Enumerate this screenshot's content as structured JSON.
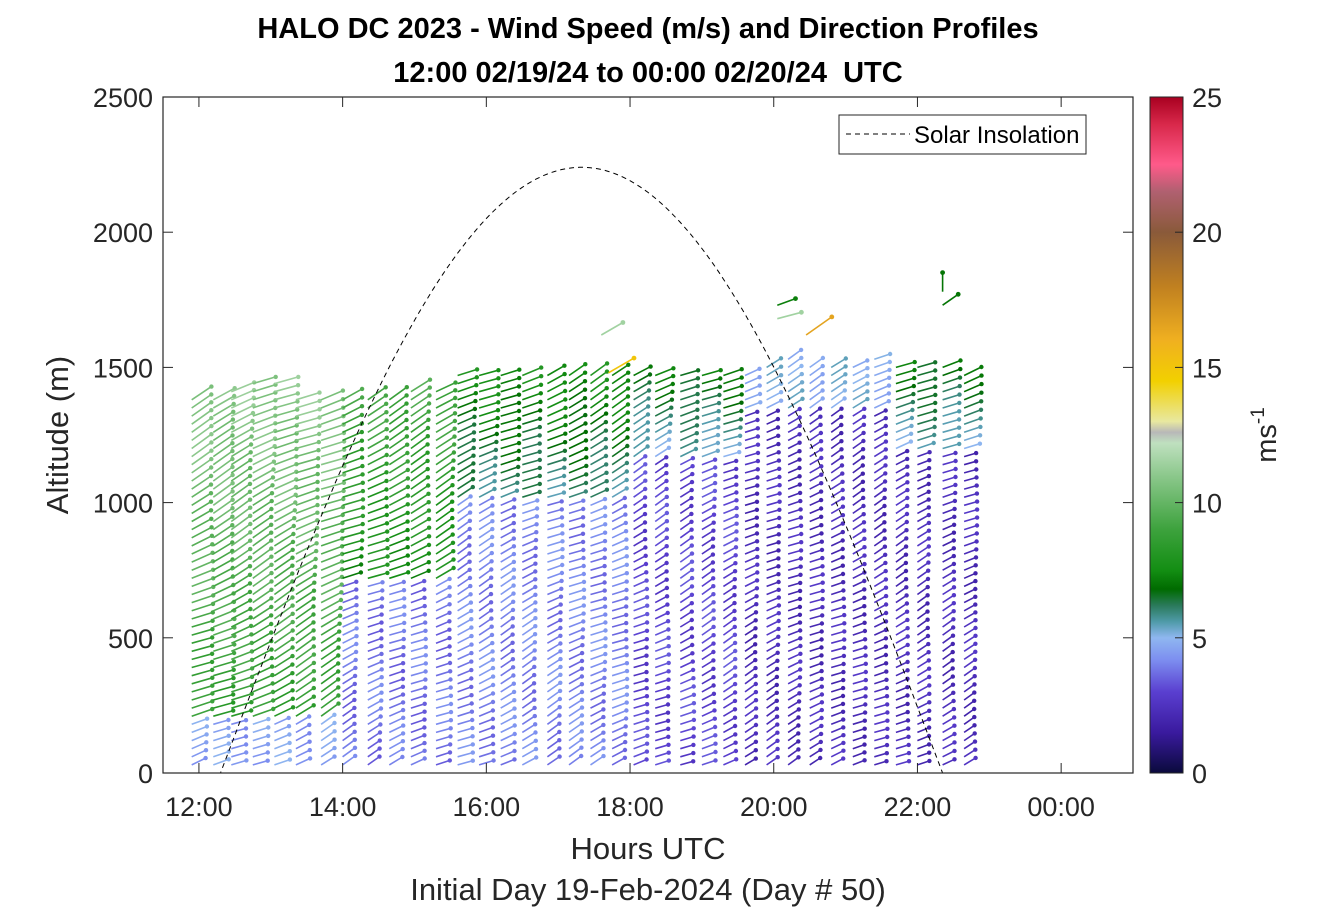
{
  "chart_data": {
    "type": "scatter",
    "title": "HALO DC 2023 - Wind Speed (m/s) and Direction Profiles",
    "subtitle": "12:00 02/19/24 to 00:00 02/20/24  UTC",
    "xlabel": "Hours UTC",
    "xlabel2": "Initial Day 19-Feb-2024 (Day # 50)",
    "ylabel": "Altitude (m)",
    "colorbar_label": "ms",
    "colorbar_label_exp": "-1",
    "xlim_hours": [
      11.5,
      25.0
    ],
    "ylim": [
      0,
      2500
    ],
    "x_ticks": [
      12,
      14,
      16,
      18,
      20,
      22,
      24
    ],
    "x_tick_labels": [
      "12:00",
      "14:00",
      "16:00",
      "18:00",
      "20:00",
      "22:00",
      "00:00"
    ],
    "y_ticks": [
      0,
      500,
      1000,
      1500,
      2000,
      2500
    ],
    "y_tick_labels": [
      "0",
      "500",
      "1000",
      "1500",
      "2000",
      "2500"
    ],
    "colorbar_range": [
      0,
      25
    ],
    "colorbar_ticks": [
      0,
      5,
      10,
      15,
      20,
      25
    ],
    "colorbar_tick_labels": [
      "0",
      "5",
      "10",
      "15",
      "20",
      "25"
    ],
    "legend": {
      "entries": [
        "Solar Insolation"
      ],
      "placement": "top-right"
    },
    "grid": false,
    "colormap": [
      [
        0,
        "#0a0a3c"
      ],
      [
        1.5,
        "#3a1a9e"
      ],
      [
        3,
        "#5a3fd0"
      ],
      [
        4.2,
        "#7d8ff0"
      ],
      [
        5,
        "#8fb7f0"
      ],
      [
        5.6,
        "#4f9aa8"
      ],
      [
        6.2,
        "#2a7a5a"
      ],
      [
        6.8,
        "#006b00"
      ],
      [
        7.5,
        "#138e13"
      ],
      [
        9,
        "#3da23d"
      ],
      [
        11,
        "#8cc88c"
      ],
      [
        12.2,
        "#bfe0bf"
      ],
      [
        12.6,
        "#b8b8b8"
      ],
      [
        13,
        "#e8e8a0"
      ],
      [
        14.5,
        "#f2d000"
      ],
      [
        16,
        "#f0b020"
      ],
      [
        18,
        "#c08020"
      ],
      [
        20,
        "#8a5a3a"
      ],
      [
        21.5,
        "#b06070"
      ],
      [
        22.5,
        "#ff5a8a"
      ],
      [
        24,
        "#d8284a"
      ],
      [
        25,
        "#a80020"
      ]
    ],
    "solar_insolation_curve": {
      "sunrise_hour": 12.3,
      "sunset_hour": 22.35,
      "peak_hour": 17.35,
      "peak_altitude": 2240
    },
    "profile_times_hours": [
      11.9,
      12.2,
      12.45,
      12.75,
      13.05,
      13.35,
      13.7,
      14.0,
      14.35,
      14.65,
      14.95,
      15.3,
      15.6,
      15.9,
      16.2,
      16.5,
      16.85,
      17.15,
      17.45,
      17.75,
      18.05,
      18.35,
      18.7,
      19.0,
      19.3,
      19.6,
      19.9,
      20.2,
      20.5,
      20.8,
      21.1,
      21.4,
      21.7,
      22.0,
      22.35,
      22.65
    ],
    "profile_top_altitudes_m": [
      1400,
      1400,
      1420,
      1450,
      1450,
      1400,
      1400,
      1400,
      1400,
      1400,
      1430,
      1430,
      1470,
      1480,
      1480,
      1490,
      1480,
      1480,
      1480,
      1480,
      1480,
      1490,
      1470,
      1470,
      1480,
      1490,
      1510,
      1530,
      1500,
      1510,
      1520,
      1540,
      1500,
      1520,
      1520,
      1480
    ],
    "elevated_samples": [
      {
        "time": 17.6,
        "altitude": 1620,
        "speed": 11.5,
        "direction_deg": 240
      },
      {
        "time": 17.7,
        "altitude": 1480,
        "speed": 15.0,
        "direction_deg": 240
      },
      {
        "time": 20.05,
        "altitude": 1730,
        "speed": 7.2,
        "direction_deg": 250
      },
      {
        "time": 20.05,
        "altitude": 1680,
        "speed": 11.5,
        "direction_deg": 255
      },
      {
        "time": 20.45,
        "altitude": 1620,
        "speed": 16.5,
        "direction_deg": 235
      },
      {
        "time": 22.35,
        "altitude": 1780,
        "speed": 7.0,
        "direction_deg": 180
      },
      {
        "time": 22.35,
        "altitude": 1730,
        "speed": 7.0,
        "direction_deg": 235
      }
    ]
  }
}
